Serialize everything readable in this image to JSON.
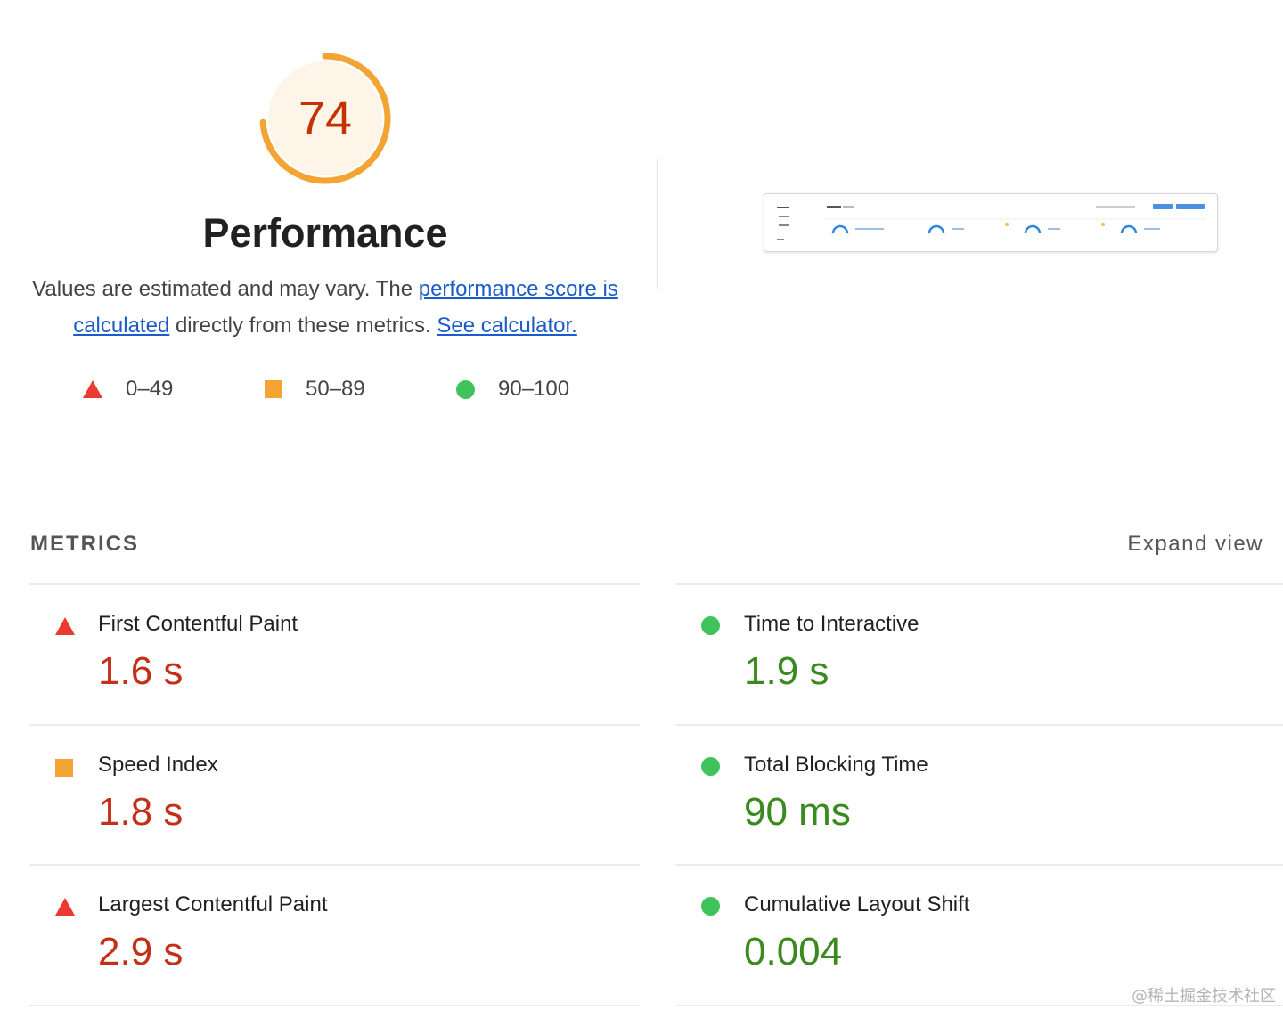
{
  "gauge": {
    "score": "74",
    "progress": 0.74,
    "color": "#f4a433",
    "background": "#fff4e8"
  },
  "header": {
    "title": "Performance",
    "description_prefix": "Values are estimated and may vary. The ",
    "score_link": "performance score is calculated",
    "description_middle": " directly from these metrics. ",
    "calculator_link": "See calculator."
  },
  "legend": [
    {
      "shape": "triangle",
      "label": "0–49",
      "color": "#eb3a2f"
    },
    {
      "shape": "square",
      "label": "50–89",
      "color": "#f4a433"
    },
    {
      "shape": "circle",
      "label": "90–100",
      "color": "#3fc35b"
    }
  ],
  "metrics_section": {
    "title": "METRICS",
    "expand_label": "Expand view"
  },
  "metrics": [
    {
      "name": "First Contentful Paint",
      "value": "1.6 s",
      "rating": "fail",
      "icon": "triangle-icon"
    },
    {
      "name": "Time to Interactive",
      "value": "1.9 s",
      "rating": "pass",
      "icon": "circle-icon"
    },
    {
      "name": "Speed Index",
      "value": "1.8 s",
      "rating": "average",
      "icon": "square-icon"
    },
    {
      "name": "Total Blocking Time",
      "value": "90 ms",
      "rating": "pass",
      "icon": "circle-icon"
    },
    {
      "name": "Largest Contentful Paint",
      "value": "2.9 s",
      "rating": "fail",
      "icon": "triangle-icon"
    },
    {
      "name": "Cumulative Layout Shift",
      "value": "0.004",
      "rating": "pass",
      "icon": "circle-icon"
    }
  ],
  "watermark": "@稀土掘金技术社区"
}
